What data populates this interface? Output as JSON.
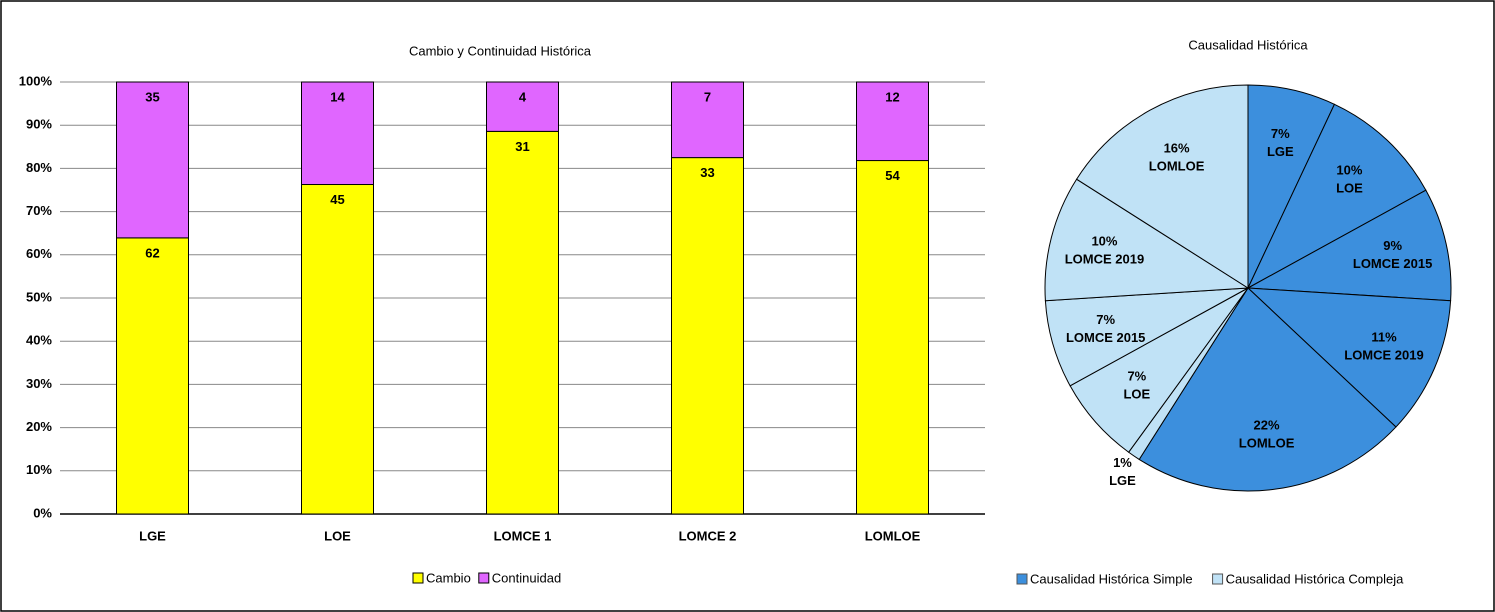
{
  "chart_data": [
    {
      "type": "bar",
      "stacking": "percent",
      "title": "Cambio y Continuidad Histórica",
      "categories": [
        "LGE",
        "LOE",
        "LOMCE 1",
        "LOMCE 2",
        "LOMLOE"
      ],
      "series": [
        {
          "name": "Cambio",
          "color": "#ffff00",
          "values": [
            62,
            45,
            31,
            33,
            54
          ]
        },
        {
          "name": "Continuidad",
          "color": "#e066ff",
          "values": [
            35,
            14,
            4,
            7,
            12
          ]
        }
      ],
      "ylim": [
        0,
        100
      ],
      "yticks": [
        {
          "value": 0,
          "label": "0%"
        },
        {
          "value": 10,
          "label": "10%"
        },
        {
          "value": 20,
          "label": "20%"
        },
        {
          "value": 30,
          "label": "30%"
        },
        {
          "value": 40,
          "label": "40%"
        },
        {
          "value": 50,
          "label": "50%"
        },
        {
          "value": 60,
          "label": "60%"
        },
        {
          "value": 70,
          "label": "70%"
        },
        {
          "value": 80,
          "label": "80%"
        },
        {
          "value": 90,
          "label": "90%"
        },
        {
          "value": 100,
          "label": "100%"
        }
      ],
      "grid": true,
      "legend": "bottom"
    },
    {
      "type": "pie",
      "title": "Causalidad Histórica",
      "categories": [
        "LGE",
        "LOE",
        "LOMCE 2015",
        "LOMCE 2019",
        "LOMLOE",
        "LGE",
        "LOE",
        "LOMCE 2015",
        "LOMCE 2019",
        "LOMLOE"
      ],
      "values": [
        7,
        10,
        9,
        11,
        22,
        1,
        7,
        7,
        10,
        16
      ],
      "value_labels": [
        "7%",
        "10%",
        "9%",
        "11%",
        "22%",
        "1%",
        "7%",
        "7%",
        "10%",
        "16%"
      ],
      "colors": [
        "#3c8fdd",
        "#3c8fdd",
        "#3c8fdd",
        "#3c8fdd",
        "#3c8fdd",
        "#c0e2f6",
        "#c0e2f6",
        "#c0e2f6",
        "#c0e2f6",
        "#c0e2f6"
      ],
      "legend_entries": [
        {
          "name": "Causalidad Histórica Simple",
          "color": "#3c8fdd"
        },
        {
          "name": "Causalidad Histórica Compleja",
          "color": "#c0e2f6"
        }
      ],
      "legend": "bottom"
    }
  ]
}
